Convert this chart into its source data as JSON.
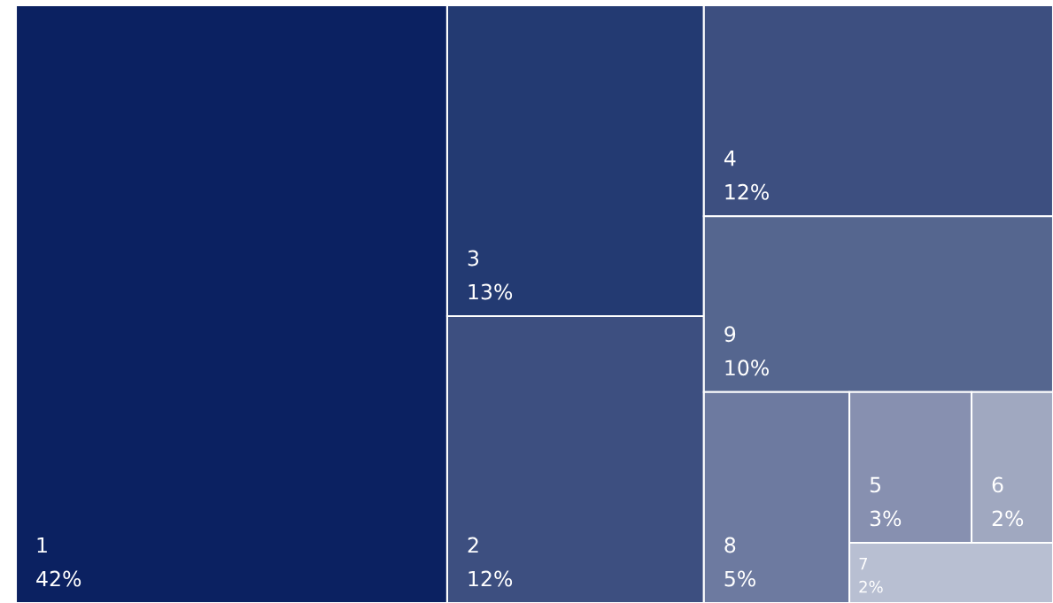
{
  "chart_data": {
    "type": "other",
    "categories": [
      "1",
      "3",
      "2",
      "4",
      "9",
      "8",
      "5",
      "6",
      "7"
    ],
    "values": [
      42,
      13,
      12,
      12,
      10,
      5,
      3,
      2,
      2
    ],
    "value_labels": [
      "42%",
      "13%",
      "12%",
      "12%",
      "10%",
      "5%",
      "3%",
      "2%",
      "2%"
    ],
    "colors": [
      "#0b2161",
      "#233a72",
      "#3d4f80",
      "#3d4f80",
      "#55668f",
      "#6d7aa0",
      "#8790b0",
      "#a0a8c0",
      "#b8bfd2"
    ]
  }
}
